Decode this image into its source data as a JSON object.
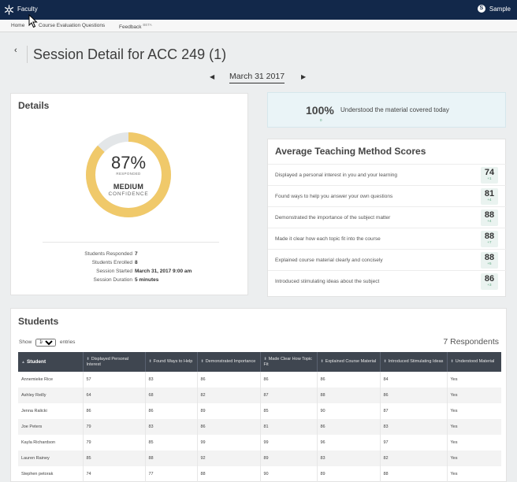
{
  "topbar": {
    "app_title": "Faculty",
    "user_name": "Sample",
    "user_initial": "S"
  },
  "nav": {
    "home": "Home",
    "course_eval": "Course Evaluation Questions",
    "feedback": "Feedback",
    "feedback_badge": "BETA"
  },
  "header": {
    "back_icon": "chevron-left-icon",
    "title": "Session Detail for ACC 249 (1)",
    "date": "March 31 2017",
    "prev_icon": "caret-left-icon",
    "next_icon": "caret-right-icon"
  },
  "details": {
    "title": "Details",
    "donut": {
      "percent": "87%",
      "percent_value": 87,
      "sub": "RESPONDED",
      "level": "MEDIUM",
      "confidence": "CONFIDENCE",
      "fill_color": "#f0c96a",
      "track_color": "#e3e6e8"
    },
    "stats": [
      {
        "label": "Students Responded",
        "value": "7"
      },
      {
        "label": "Students Enrolled",
        "value": "8"
      },
      {
        "label": "Session Started",
        "value": "March 31, 2017 9:00 am"
      },
      {
        "label": "Session Duration",
        "value": "5 minutes"
      }
    ]
  },
  "understood": {
    "percent": "100%",
    "delta": "0",
    "text": "Understood the material covered today"
  },
  "scores": {
    "title": "Average Teaching Method Scores",
    "items": [
      {
        "label": "Displayed a personal interest in you and your learning",
        "value": "74",
        "delta": "+1"
      },
      {
        "label": "Found ways to help you answer your own questions",
        "value": "81",
        "delta": "+4"
      },
      {
        "label": "Demonstrated the importance of the subject matter",
        "value": "88",
        "delta": "+4"
      },
      {
        "label": "Made it clear how each topic fit into the course",
        "value": "88",
        "delta": "+7"
      },
      {
        "label": "Explained course material clearly and concisely",
        "value": "88",
        "delta": "+5"
      },
      {
        "label": "Introduced stimulating ideas about the subject",
        "value": "86",
        "delta": "+3"
      }
    ]
  },
  "students": {
    "title": "Students",
    "show_label": "Show",
    "show_value": "10",
    "entries_label": "entries",
    "respondents": "7 Respondents",
    "columns": [
      "Student",
      "Displayed Personal Interest",
      "Found Ways to Help",
      "Demonstrated Importance",
      "Made Clear How Topic Fit",
      "Explained Course Material",
      "Introduced Stimulating Ideas",
      "Understood Material"
    ],
    "rows": [
      [
        "Annemieke Rice",
        "57",
        "83",
        "86",
        "86",
        "86",
        "84",
        "Yes"
      ],
      [
        "Ashley Reilly",
        "64",
        "68",
        "82",
        "87",
        "88",
        "86",
        "Yes"
      ],
      [
        "Jenna Ralicki",
        "86",
        "86",
        "89",
        "85",
        "90",
        "87",
        "Yes"
      ],
      [
        "Joe Peters",
        "79",
        "83",
        "86",
        "81",
        "86",
        "83",
        "Yes"
      ],
      [
        "Kayla Richardson",
        "79",
        "85",
        "99",
        "99",
        "96",
        "97",
        "Yes"
      ],
      [
        "Lauren Rainey",
        "85",
        "88",
        "92",
        "89",
        "83",
        "82",
        "Yes"
      ],
      [
        "Stephen petorak",
        "74",
        "77",
        "88",
        "90",
        "89",
        "88",
        "Yes"
      ]
    ]
  }
}
